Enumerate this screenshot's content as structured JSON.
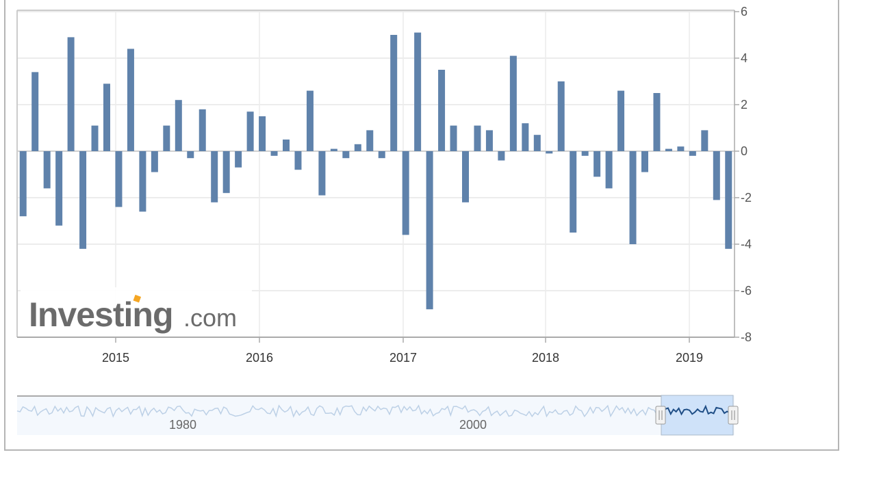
{
  "chart_data": {
    "type": "bar",
    "title": "",
    "xlabel": "",
    "ylabel": "",
    "ylim": [
      -8,
      6
    ],
    "y_ticks": [
      "6",
      "4",
      "2",
      "0",
      "-2",
      "-4",
      "-6",
      "-8"
    ],
    "y_tick_values": [
      6,
      4,
      2,
      0,
      -2,
      -4,
      -6,
      -8
    ],
    "x_tick_labels": [
      "2015",
      "2016",
      "2017",
      "2018",
      "2019"
    ],
    "grid": true,
    "bar_color": "#5f82ab",
    "series": [
      {
        "values": [
          -2.8,
          3.4,
          -1.6,
          -3.2,
          4.9,
          -4.2,
          1.1,
          2.9,
          -2.4,
          4.4,
          -2.6,
          -0.9,
          1.1,
          2.2,
          -0.3,
          1.8,
          -2.2,
          -1.8,
          -0.7,
          1.7,
          1.5,
          -0.2,
          0.5,
          -0.8,
          2.6,
          -1.9,
          0.1,
          -0.3,
          0.3,
          0.9,
          -0.3,
          5.0,
          -3.6,
          5.1,
          -6.8,
          3.5,
          1.1,
          -2.2,
          1.1,
          0.9,
          -0.4,
          4.1,
          1.2,
          0.7,
          -0.1,
          3.0,
          -3.5,
          -0.2,
          -1.1,
          -1.6,
          2.6,
          -4.0,
          -0.9,
          2.5,
          0.1,
          0.2,
          -0.2,
          0.9,
          -2.1,
          -4.2
        ]
      }
    ]
  },
  "navigator": {
    "labels": [
      "1980",
      "2000"
    ]
  },
  "watermark": {
    "brand": "Investing",
    "suffix": ".com",
    "accent_color": "#f5a623"
  }
}
